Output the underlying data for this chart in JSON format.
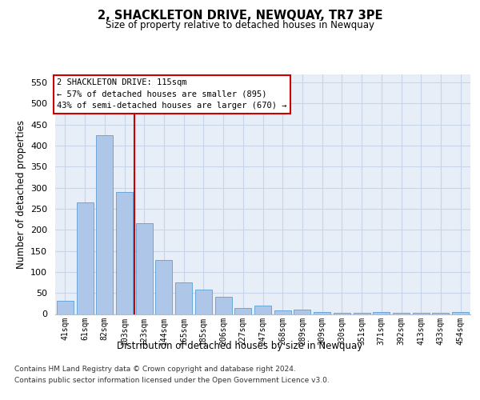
{
  "title": "2, SHACKLETON DRIVE, NEWQUAY, TR7 3PE",
  "subtitle": "Size of property relative to detached houses in Newquay",
  "xlabel": "Distribution of detached houses by size in Newquay",
  "ylabel": "Number of detached properties",
  "categories": [
    "41sqm",
    "61sqm",
    "82sqm",
    "103sqm",
    "123sqm",
    "144sqm",
    "165sqm",
    "185sqm",
    "206sqm",
    "227sqm",
    "247sqm",
    "268sqm",
    "289sqm",
    "309sqm",
    "330sqm",
    "351sqm",
    "371sqm",
    "392sqm",
    "413sqm",
    "433sqm",
    "454sqm"
  ],
  "values": [
    32,
    265,
    425,
    290,
    215,
    128,
    75,
    58,
    40,
    15,
    20,
    8,
    10,
    4,
    2,
    2,
    5,
    3,
    2,
    2,
    4
  ],
  "bar_color": "#aec6e8",
  "bar_edge_color": "#5a9fd4",
  "vline_color": "#cc0000",
  "vline_x": 3.5,
  "annotation_line1": "2 SHACKLETON DRIVE: 115sqm",
  "annotation_line2": "← 57% of detached houses are smaller (895)",
  "annotation_line3": "43% of semi-detached houses are larger (670) →",
  "annotation_box_color": "#ffffff",
  "annotation_box_edge": "#cc0000",
  "ylim": [
    0,
    570
  ],
  "yticks": [
    0,
    50,
    100,
    150,
    200,
    250,
    300,
    350,
    400,
    450,
    500,
    550
  ],
  "grid_color": "#c8d4e8",
  "bg_color": "#e8eef8",
  "footer1": "Contains HM Land Registry data © Crown copyright and database right 2024.",
  "footer2": "Contains public sector information licensed under the Open Government Licence v3.0."
}
